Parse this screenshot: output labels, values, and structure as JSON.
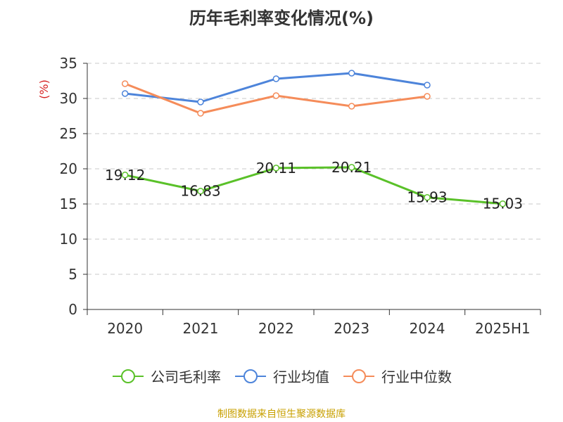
{
  "chart_data": {
    "type": "line",
    "title": "历年毛利率变化情况(%)",
    "ylabel": "(%)",
    "categories": [
      "2020",
      "2021",
      "2022",
      "2023",
      "2024",
      "2025H1"
    ],
    "ylim": [
      0,
      35
    ],
    "yticks": [
      0,
      5,
      10,
      15,
      20,
      25,
      30,
      35
    ],
    "grid": true,
    "legend_position": "bottom",
    "series": [
      {
        "name": "公司毛利率",
        "color": "#5ac129",
        "values": [
          19.12,
          16.83,
          20.11,
          20.21,
          15.93,
          15.03
        ],
        "labels": [
          "19.12",
          "16.83",
          "20.11",
          "20.21",
          "15.93",
          "15.03"
        ]
      },
      {
        "name": "行业均值",
        "color": "#4d84da",
        "values": [
          30.7,
          29.5,
          32.8,
          33.6,
          31.9,
          null
        ]
      },
      {
        "name": "行业中位数",
        "color": "#f58c5a",
        "values": [
          32.1,
          27.9,
          30.4,
          28.9,
          30.3,
          null
        ]
      }
    ]
  },
  "footer": {
    "source": "制图数据来自恒生聚源数据库"
  }
}
